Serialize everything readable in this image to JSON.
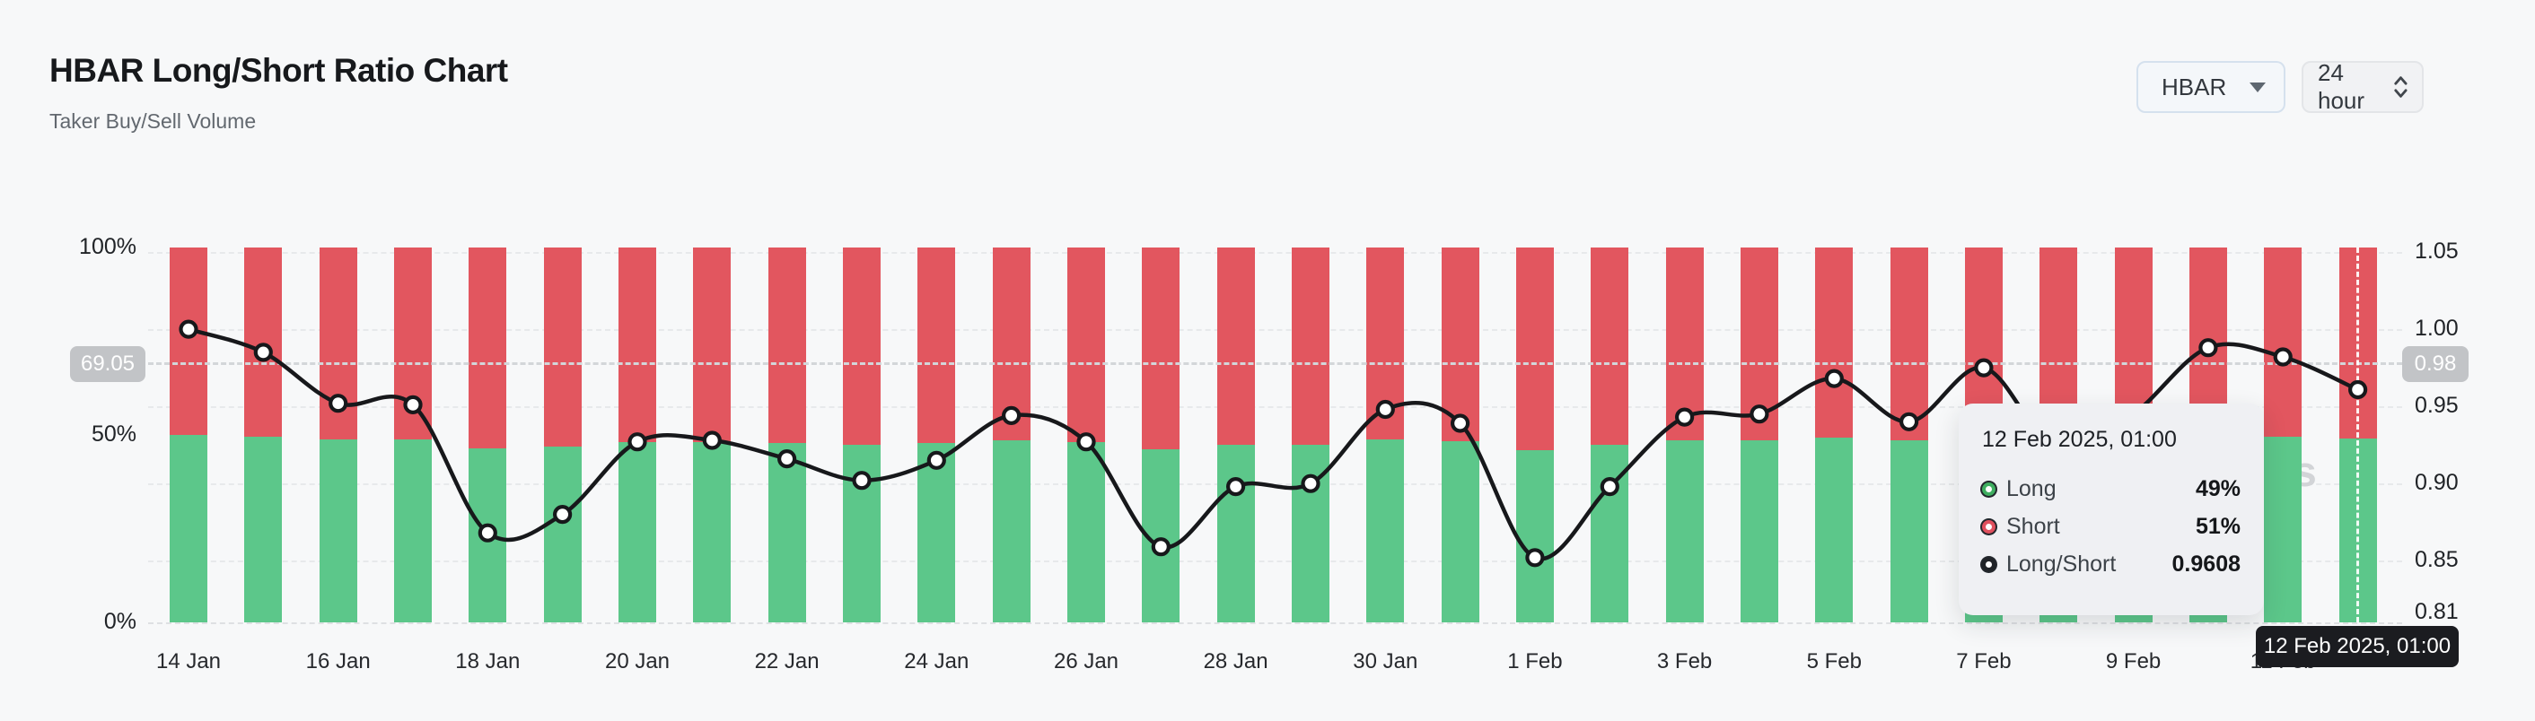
{
  "header": {
    "title": "HBAR Long/Short Ratio Chart",
    "subtitle": "Taker Buy/Sell Volume"
  },
  "controls": {
    "symbol_select": {
      "value": "HBAR"
    },
    "interval_select": {
      "value": "24 hour"
    }
  },
  "watermark": "coinglass",
  "crosshair": {
    "left_badge": "69.05",
    "right_badge": "0.98",
    "x_label": "12 Feb 2025, 01:00"
  },
  "tooltip": {
    "title": "12 Feb 2025, 01:00",
    "rows": [
      {
        "label": "Long",
        "value": "49%",
        "color": "#3fae60"
      },
      {
        "label": "Short",
        "value": "51%",
        "color": "#e0505e"
      },
      {
        "label": "Long/Short",
        "value": "0.9608",
        "color": "#202327"
      }
    ]
  },
  "colors": {
    "long_green": "#5cc78a",
    "short_red": "#e2565f",
    "line_black": "#17181b",
    "background": "#f7f8f9",
    "badge_grey": "#c2c4c7"
  },
  "chart_data": {
    "type": "bar+line (stacked 100% bars with ratio line overlay)",
    "title": "HBAR Long/Short Ratio Chart",
    "dates": [
      "14 Jan",
      "15 Jan",
      "16 Jan",
      "17 Jan",
      "18 Jan",
      "19 Jan",
      "20 Jan",
      "21 Jan",
      "22 Jan",
      "23 Jan",
      "24 Jan",
      "25 Jan",
      "26 Jan",
      "27 Jan",
      "28 Jan",
      "29 Jan",
      "30 Jan",
      "31 Jan",
      "1 Feb",
      "2 Feb",
      "3 Feb",
      "4 Feb",
      "5 Feb",
      "6 Feb",
      "7 Feb",
      "8 Feb",
      "9 Feb",
      "10 Feb",
      "11 Feb",
      "12 Feb"
    ],
    "series": [
      {
        "name": "Long",
        "unit": "%",
        "axis": "left",
        "values": [
          50.0,
          49.6,
          48.8,
          48.7,
          46.5,
          46.8,
          48.1,
          48.1,
          47.8,
          47.4,
          47.8,
          48.6,
          48.1,
          46.2,
          47.3,
          47.4,
          48.7,
          48.4,
          46.0,
          47.3,
          48.5,
          48.6,
          49.2,
          48.5,
          49.4,
          47.9,
          48.6,
          49.7,
          49.5,
          49.0
        ]
      },
      {
        "name": "Short",
        "unit": "%",
        "axis": "left",
        "derivation": "100 - Long"
      },
      {
        "name": "Long/Short",
        "axis": "right",
        "values": [
          1.0,
          0.985,
          0.952,
          0.951,
          0.868,
          0.88,
          0.927,
          0.928,
          0.916,
          0.902,
          0.915,
          0.944,
          0.927,
          0.859,
          0.898,
          0.9,
          0.948,
          0.939,
          0.852,
          0.898,
          0.943,
          0.945,
          0.968,
          0.94,
          0.975,
          0.92,
          0.945,
          0.988,
          0.982,
          0.9608
        ]
      }
    ],
    "x_tick_labels": [
      "14 Jan",
      "16 Jan",
      "18 Jan",
      "20 Jan",
      "22 Jan",
      "24 Jan",
      "26 Jan",
      "28 Jan",
      "30 Jan",
      "1 Feb",
      "3 Feb",
      "5 Feb",
      "7 Feb",
      "9 Feb",
      "11 Feb"
    ],
    "left_axis_ticks": [
      "100%",
      "50%",
      "0%"
    ],
    "right_axis_ticks": [
      "1.05",
      "1.00",
      "0.95",
      "0.90",
      "0.85",
      "0.81"
    ],
    "right_axis_range": [
      0.81,
      1.05
    ],
    "left_axis_range_pct": [
      0,
      100
    ],
    "grid": "horizontal dashed at right-axis ticks",
    "legend_position": "tooltip only"
  }
}
